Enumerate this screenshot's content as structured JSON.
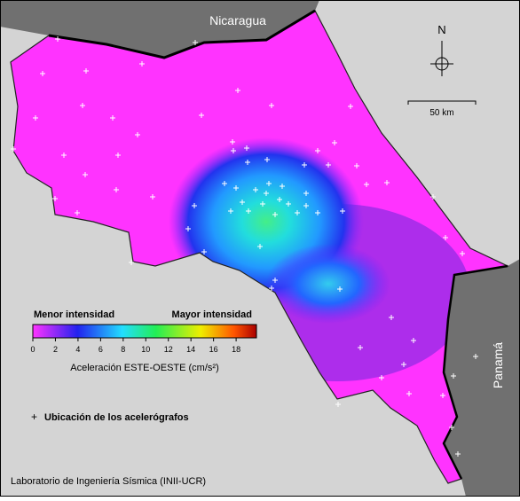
{
  "map": {
    "labels": {
      "north_country": "Nicaragua",
      "south_country": "Panamá",
      "north": "N",
      "scale": "50 km"
    },
    "legend": {
      "low": "Menor intensidad",
      "high": "Mayor intensidad",
      "title": "Aceleración ESTE-OESTE (cm/s²)",
      "colorbar_lim": [
        0,
        19.8
      ],
      "colorbar_ticks": [
        0,
        2,
        4,
        6,
        8,
        10,
        12,
        14,
        16,
        18
      ],
      "stations": "Ubicación de los acelerógrafos"
    },
    "credit": "Laboratorio de Ingeniería Sísmica (INII-UCR)"
  }
}
